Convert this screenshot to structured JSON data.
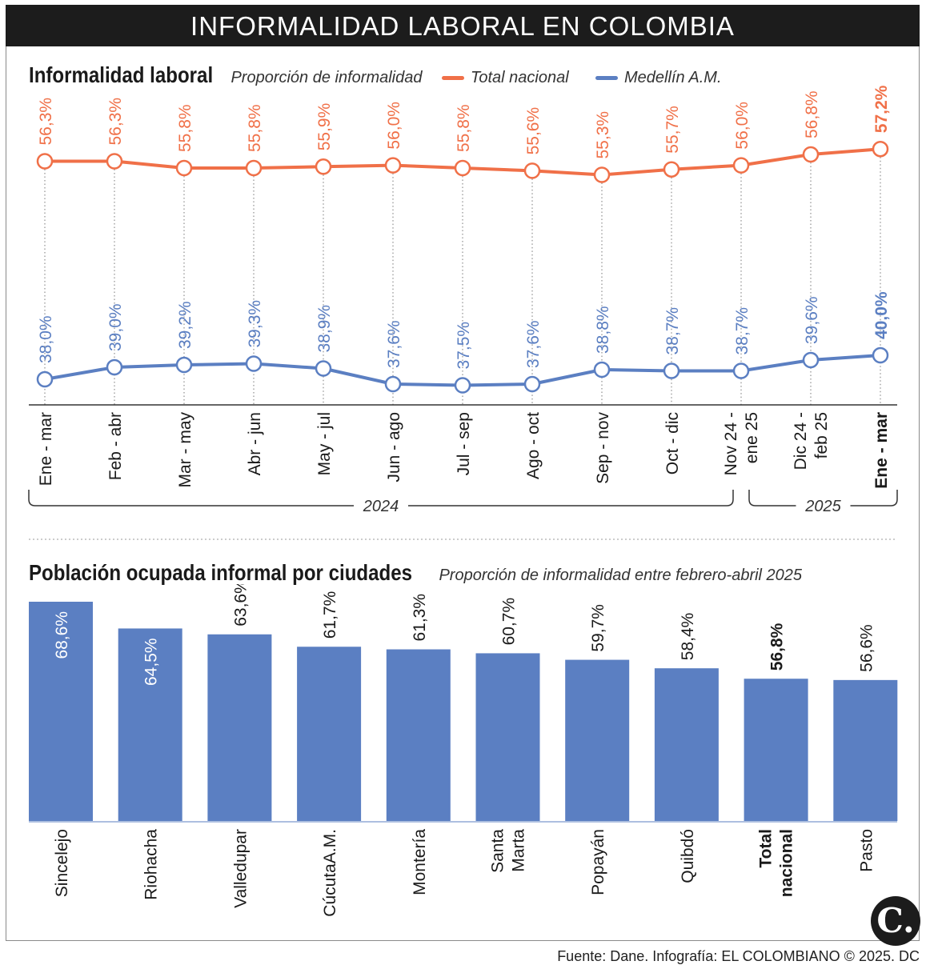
{
  "header": {
    "title": "INFORMALIDAD LABORAL EN COLOMBIA"
  },
  "chart1": {
    "title": "Informalidad laboral",
    "subtitle": "Proporción de informalidad",
    "legend": [
      {
        "name": "Total nacional",
        "color": "#f07048"
      },
      {
        "name": "Medellín A.M.",
        "color": "#5b7fc2"
      }
    ],
    "years": [
      "2024",
      "2025"
    ]
  },
  "chart2": {
    "title": "Población ocupada informal por ciudades",
    "subtitle": "Proporción de informalidad entre febrero-abril 2025"
  },
  "chart_data": [
    {
      "type": "line",
      "title": "Informalidad laboral",
      "categories": [
        [
          "Ene - mar"
        ],
        [
          "Feb - abr"
        ],
        [
          "Mar - may"
        ],
        [
          "Abr - jun"
        ],
        [
          "May - jul"
        ],
        [
          "Jun - ago"
        ],
        [
          "Jul - sep"
        ],
        [
          "Ago - oct"
        ],
        [
          "Sep - nov"
        ],
        [
          "Oct - dic"
        ],
        [
          "Nov 24 -",
          "ene 25"
        ],
        [
          "Dic 24 -",
          "feb 25"
        ],
        [
          "Ene - mar"
        ]
      ],
      "highlight_index": 12,
      "series": [
        {
          "name": "Total nacional",
          "color": "#f07048",
          "values": [
            56.3,
            56.3,
            55.8,
            55.8,
            55.9,
            56.0,
            55.8,
            55.6,
            55.3,
            55.7,
            56.0,
            56.8,
            57.2
          ],
          "labels": [
            "56,3%",
            "56,3%",
            "55,8%",
            "55,8%",
            "55,9%",
            "56,0%",
            "55,8%",
            "55,6%",
            "55,3%",
            "55,7%",
            "56,0%",
            "56,8%",
            "57,2%"
          ]
        },
        {
          "name": "Medellín A.M.",
          "color": "#5b7fc2",
          "values": [
            38.0,
            39.0,
            39.2,
            39.3,
            38.9,
            37.6,
            37.5,
            37.6,
            38.8,
            38.7,
            38.7,
            39.6,
            40.0
          ],
          "labels": [
            "38,0%",
            "39,0%",
            "39,2%",
            "39,3%",
            "38,9%",
            "37,6%",
            "37,5%",
            "37,6%",
            "38,8%",
            "38,7%",
            "38,7%",
            "39,6%",
            "40,0%"
          ]
        }
      ],
      "year_groups": [
        {
          "label": "2024",
          "from": 0,
          "to": 10
        },
        {
          "label": "2025",
          "from": 11,
          "to": 12
        }
      ]
    },
    {
      "type": "bar",
      "title": "Población ocupada informal por ciudades",
      "categories": [
        [
          "Sincelejo"
        ],
        [
          "Riohacha"
        ],
        [
          "Valledupar"
        ],
        [
          "CúcutaA.M."
        ],
        [
          "Montería"
        ],
        [
          "Santa",
          "Marta"
        ],
        [
          "Popayán"
        ],
        [
          "Quibdó"
        ],
        [
          "Total",
          "nacional"
        ],
        [
          "Pasto"
        ]
      ],
      "values": [
        68.6,
        64.5,
        63.6,
        61.7,
        61.3,
        60.7,
        59.7,
        58.4,
        56.8,
        56.6
      ],
      "labels": [
        "68,6%",
        "64,5%",
        "63,6%",
        "61,7%",
        "61,3%",
        "60,7%",
        "59,7%",
        "58,4%",
        "56,8%",
        "56,6%"
      ],
      "highlight_index": 8,
      "inside_labels": [
        0,
        1
      ],
      "bar_color": "#5b7fc2",
      "ylim": [
        35,
        68.6
      ]
    }
  ],
  "footer": {
    "source": "Fuente: Dane. Infografía: EL COLOMBIANO © 2025. DC",
    "logo": "C."
  }
}
